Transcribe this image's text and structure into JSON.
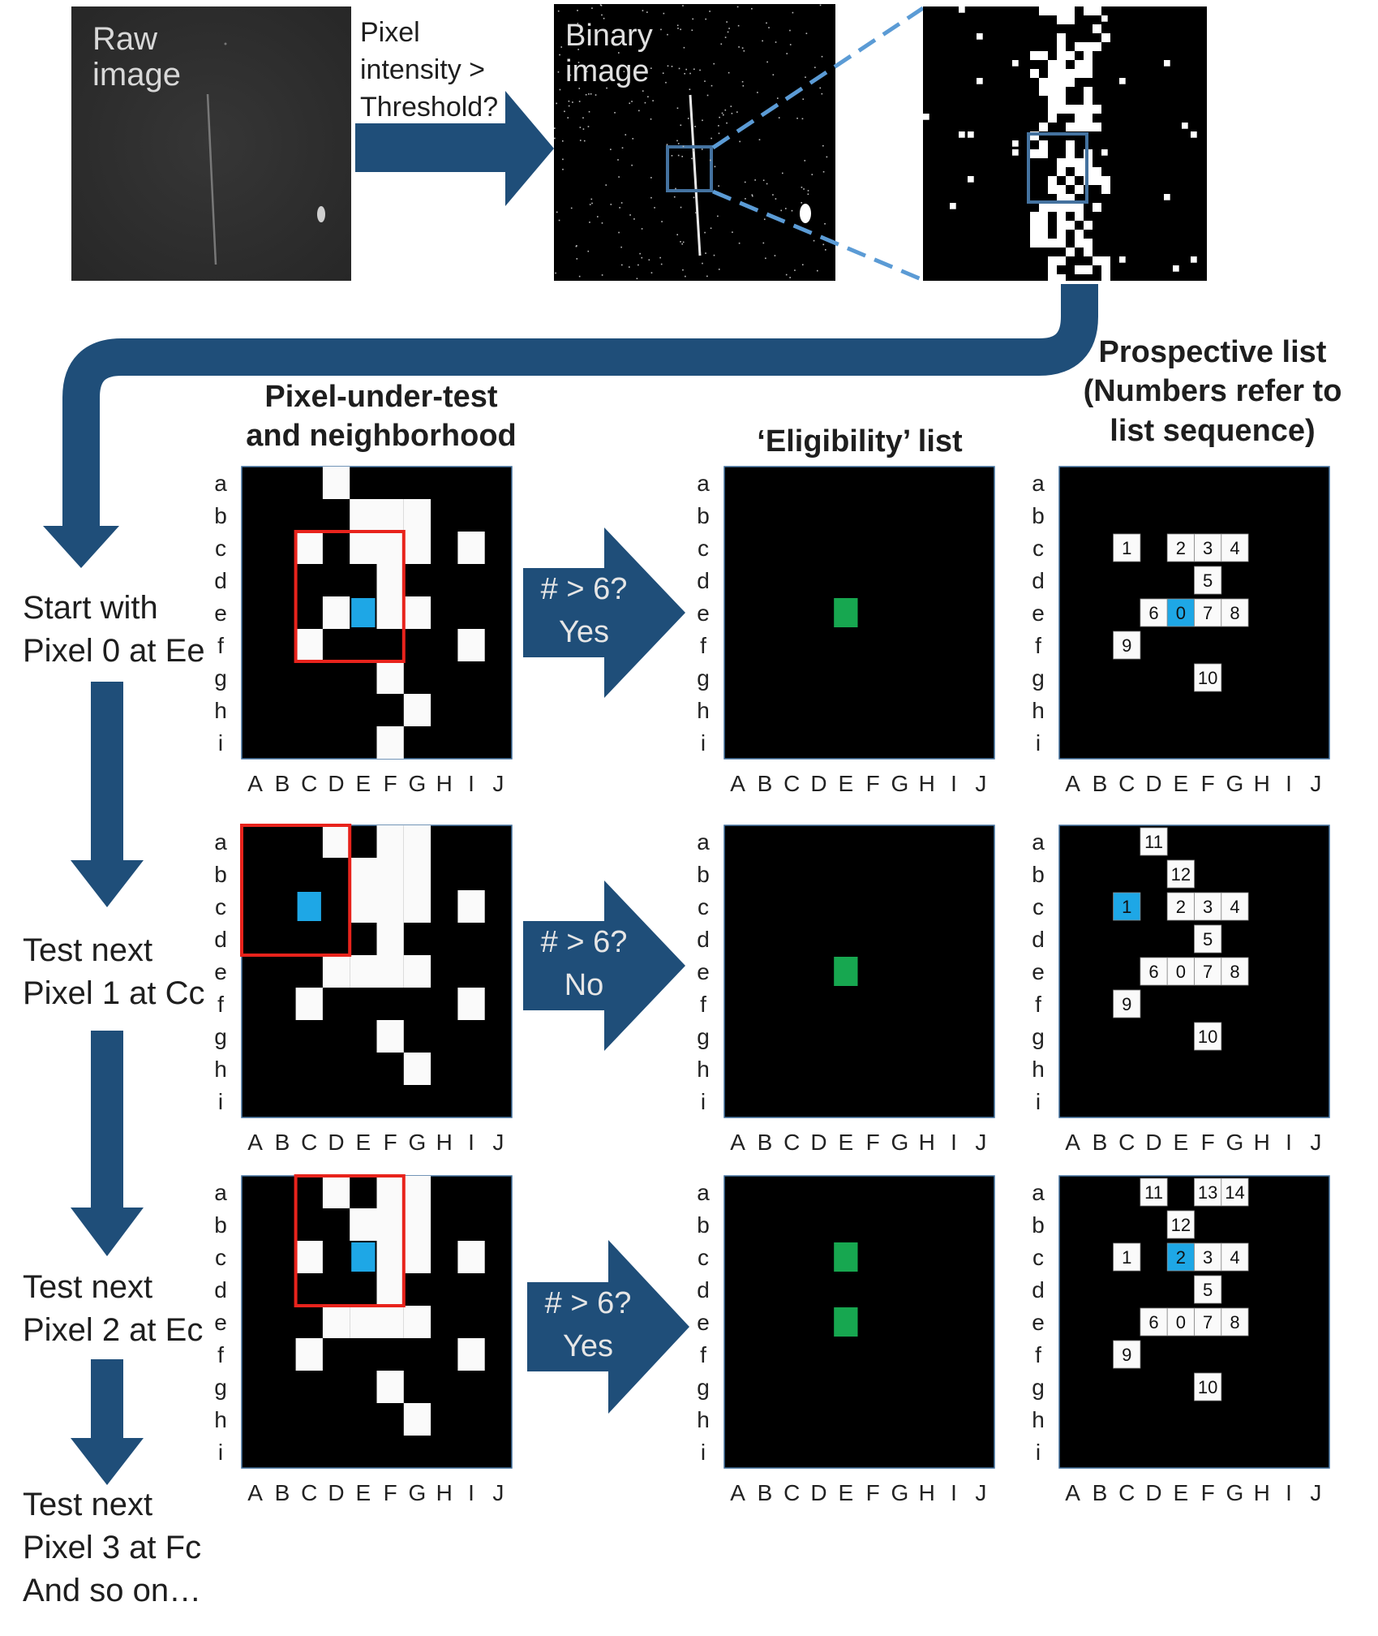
{
  "top": {
    "raw_label": [
      "Raw",
      "image"
    ],
    "threshold_label": [
      "Pixel",
      "intensity >",
      "Threshold?"
    ],
    "binary_label": [
      "Binary",
      "image"
    ]
  },
  "headers": {
    "neighborhood": [
      "Pixel-under-test",
      "and neighborhood"
    ],
    "eligibility": "‘Eligibility’ list",
    "prospective": [
      "Prospective list",
      "(Numbers refer to",
      "list sequence)"
    ]
  },
  "steps": [
    [
      "Start with",
      "Pixel 0 at Ee"
    ],
    [
      "Test next",
      "Pixel 1 at Cc"
    ],
    [
      "Test next",
      "Pixel 2 at Ec"
    ],
    [
      "Test next",
      "Pixel 3 at Fc",
      "And so on…"
    ]
  ],
  "tests": [
    {
      "question": "# > 6?",
      "answer": "Yes"
    },
    {
      "question": "# > 6?",
      "answer": "No"
    },
    {
      "question": "# > 6?",
      "answer": "Yes"
    }
  ],
  "grid_rows": [
    "a",
    "b",
    "c",
    "d",
    "e",
    "f",
    "g",
    "h",
    "i"
  ],
  "grid_cols": [
    "A",
    "B",
    "C",
    "D",
    "E",
    "F",
    "G",
    "H",
    "I",
    "J"
  ],
  "colors": {
    "arrow": "#1f4e79",
    "grid_bg": "#000000",
    "pixel_on": "#fafafa",
    "test_pixel": "#1ea7e6",
    "eligible": "#17a750",
    "window": "#e8231c",
    "zoom_box": "#44729f",
    "zoom_line": "#5b9bd5"
  },
  "neighborhood_panels": [
    {
      "white": [
        [
          3,
          0
        ],
        [
          4,
          1
        ],
        [
          5,
          1
        ],
        [
          6,
          1
        ],
        [
          2,
          2
        ],
        [
          4,
          2
        ],
        [
          5,
          2
        ],
        [
          6,
          2
        ],
        [
          8,
          2
        ],
        [
          5,
          3
        ],
        [
          3,
          4
        ],
        [
          5,
          4
        ],
        [
          6,
          4
        ],
        [
          2,
          5
        ],
        [
          8,
          5
        ],
        [
          5,
          6
        ],
        [
          6,
          7
        ],
        [
          5,
          8
        ]
      ],
      "test": [
        4,
        4
      ],
      "window": [
        2,
        2,
        4,
        4
      ]
    },
    {
      "white": [
        [
          3,
          0
        ],
        [
          5,
          0
        ],
        [
          6,
          0
        ],
        [
          4,
          1
        ],
        [
          5,
          1
        ],
        [
          6,
          1
        ],
        [
          4,
          2
        ],
        [
          5,
          2
        ],
        [
          6,
          2
        ],
        [
          8,
          2
        ],
        [
          5,
          3
        ],
        [
          3,
          4
        ],
        [
          4,
          4
        ],
        [
          5,
          4
        ],
        [
          6,
          4
        ],
        [
          2,
          5
        ],
        [
          8,
          5
        ],
        [
          5,
          6
        ],
        [
          6,
          7
        ]
      ],
      "test": [
        2,
        2
      ],
      "window": [
        0,
        0,
        4,
        4
      ]
    },
    {
      "white": [
        [
          3,
          0
        ],
        [
          5,
          0
        ],
        [
          6,
          0
        ],
        [
          4,
          1
        ],
        [
          5,
          1
        ],
        [
          6,
          1
        ],
        [
          2,
          2
        ],
        [
          5,
          2
        ],
        [
          6,
          2
        ],
        [
          8,
          2
        ],
        [
          5,
          3
        ],
        [
          3,
          4
        ],
        [
          4,
          4
        ],
        [
          5,
          4
        ],
        [
          6,
          4
        ],
        [
          2,
          5
        ],
        [
          8,
          5
        ],
        [
          5,
          6
        ],
        [
          6,
          7
        ]
      ],
      "test": [
        4,
        2
      ],
      "window": [
        2,
        0,
        4,
        4
      ]
    }
  ],
  "eligibility_panels": [
    {
      "cells": [
        [
          4,
          4
        ]
      ]
    },
    {
      "cells": [
        [
          4,
          4
        ]
      ]
    },
    {
      "cells": [
        [
          4,
          2
        ],
        [
          4,
          4
        ]
      ]
    }
  ],
  "prospective_panels": [
    {
      "cells": [
        {
          "c": 2,
          "r": 2,
          "n": "1"
        },
        {
          "c": 4,
          "r": 2,
          "n": "2"
        },
        {
          "c": 5,
          "r": 2,
          "n": "3"
        },
        {
          "c": 6,
          "r": 2,
          "n": "4"
        },
        {
          "c": 5,
          "r": 3,
          "n": "5"
        },
        {
          "c": 3,
          "r": 4,
          "n": "6"
        },
        {
          "c": 4,
          "r": 4,
          "n": "0",
          "test": true
        },
        {
          "c": 5,
          "r": 4,
          "n": "7"
        },
        {
          "c": 6,
          "r": 4,
          "n": "8"
        },
        {
          "c": 2,
          "r": 5,
          "n": "9"
        },
        {
          "c": 5,
          "r": 6,
          "n": "10"
        }
      ]
    },
    {
      "cells": [
        {
          "c": 3,
          "r": 0,
          "n": "11"
        },
        {
          "c": 4,
          "r": 1,
          "n": "12"
        },
        {
          "c": 2,
          "r": 2,
          "n": "1",
          "test": true
        },
        {
          "c": 4,
          "r": 2,
          "n": "2"
        },
        {
          "c": 5,
          "r": 2,
          "n": "3"
        },
        {
          "c": 6,
          "r": 2,
          "n": "4"
        },
        {
          "c": 5,
          "r": 3,
          "n": "5"
        },
        {
          "c": 3,
          "r": 4,
          "n": "6"
        },
        {
          "c": 4,
          "r": 4,
          "n": "0"
        },
        {
          "c": 5,
          "r": 4,
          "n": "7"
        },
        {
          "c": 6,
          "r": 4,
          "n": "8"
        },
        {
          "c": 2,
          "r": 5,
          "n": "9"
        },
        {
          "c": 5,
          "r": 6,
          "n": "10"
        }
      ]
    },
    {
      "cells": [
        {
          "c": 3,
          "r": 0,
          "n": "11"
        },
        {
          "c": 5,
          "r": 0,
          "n": "13"
        },
        {
          "c": 6,
          "r": 0,
          "n": "14"
        },
        {
          "c": 4,
          "r": 1,
          "n": "12"
        },
        {
          "c": 2,
          "r": 2,
          "n": "1"
        },
        {
          "c": 4,
          "r": 2,
          "n": "2",
          "test": true
        },
        {
          "c": 5,
          "r": 2,
          "n": "3"
        },
        {
          "c": 6,
          "r": 2,
          "n": "4"
        },
        {
          "c": 5,
          "r": 3,
          "n": "5"
        },
        {
          "c": 3,
          "r": 4,
          "n": "6"
        },
        {
          "c": 4,
          "r": 4,
          "n": "0"
        },
        {
          "c": 5,
          "r": 4,
          "n": "7"
        },
        {
          "c": 6,
          "r": 4,
          "n": "8"
        },
        {
          "c": 2,
          "r": 5,
          "n": "9"
        },
        {
          "c": 5,
          "r": 6,
          "n": "10"
        }
      ]
    }
  ]
}
